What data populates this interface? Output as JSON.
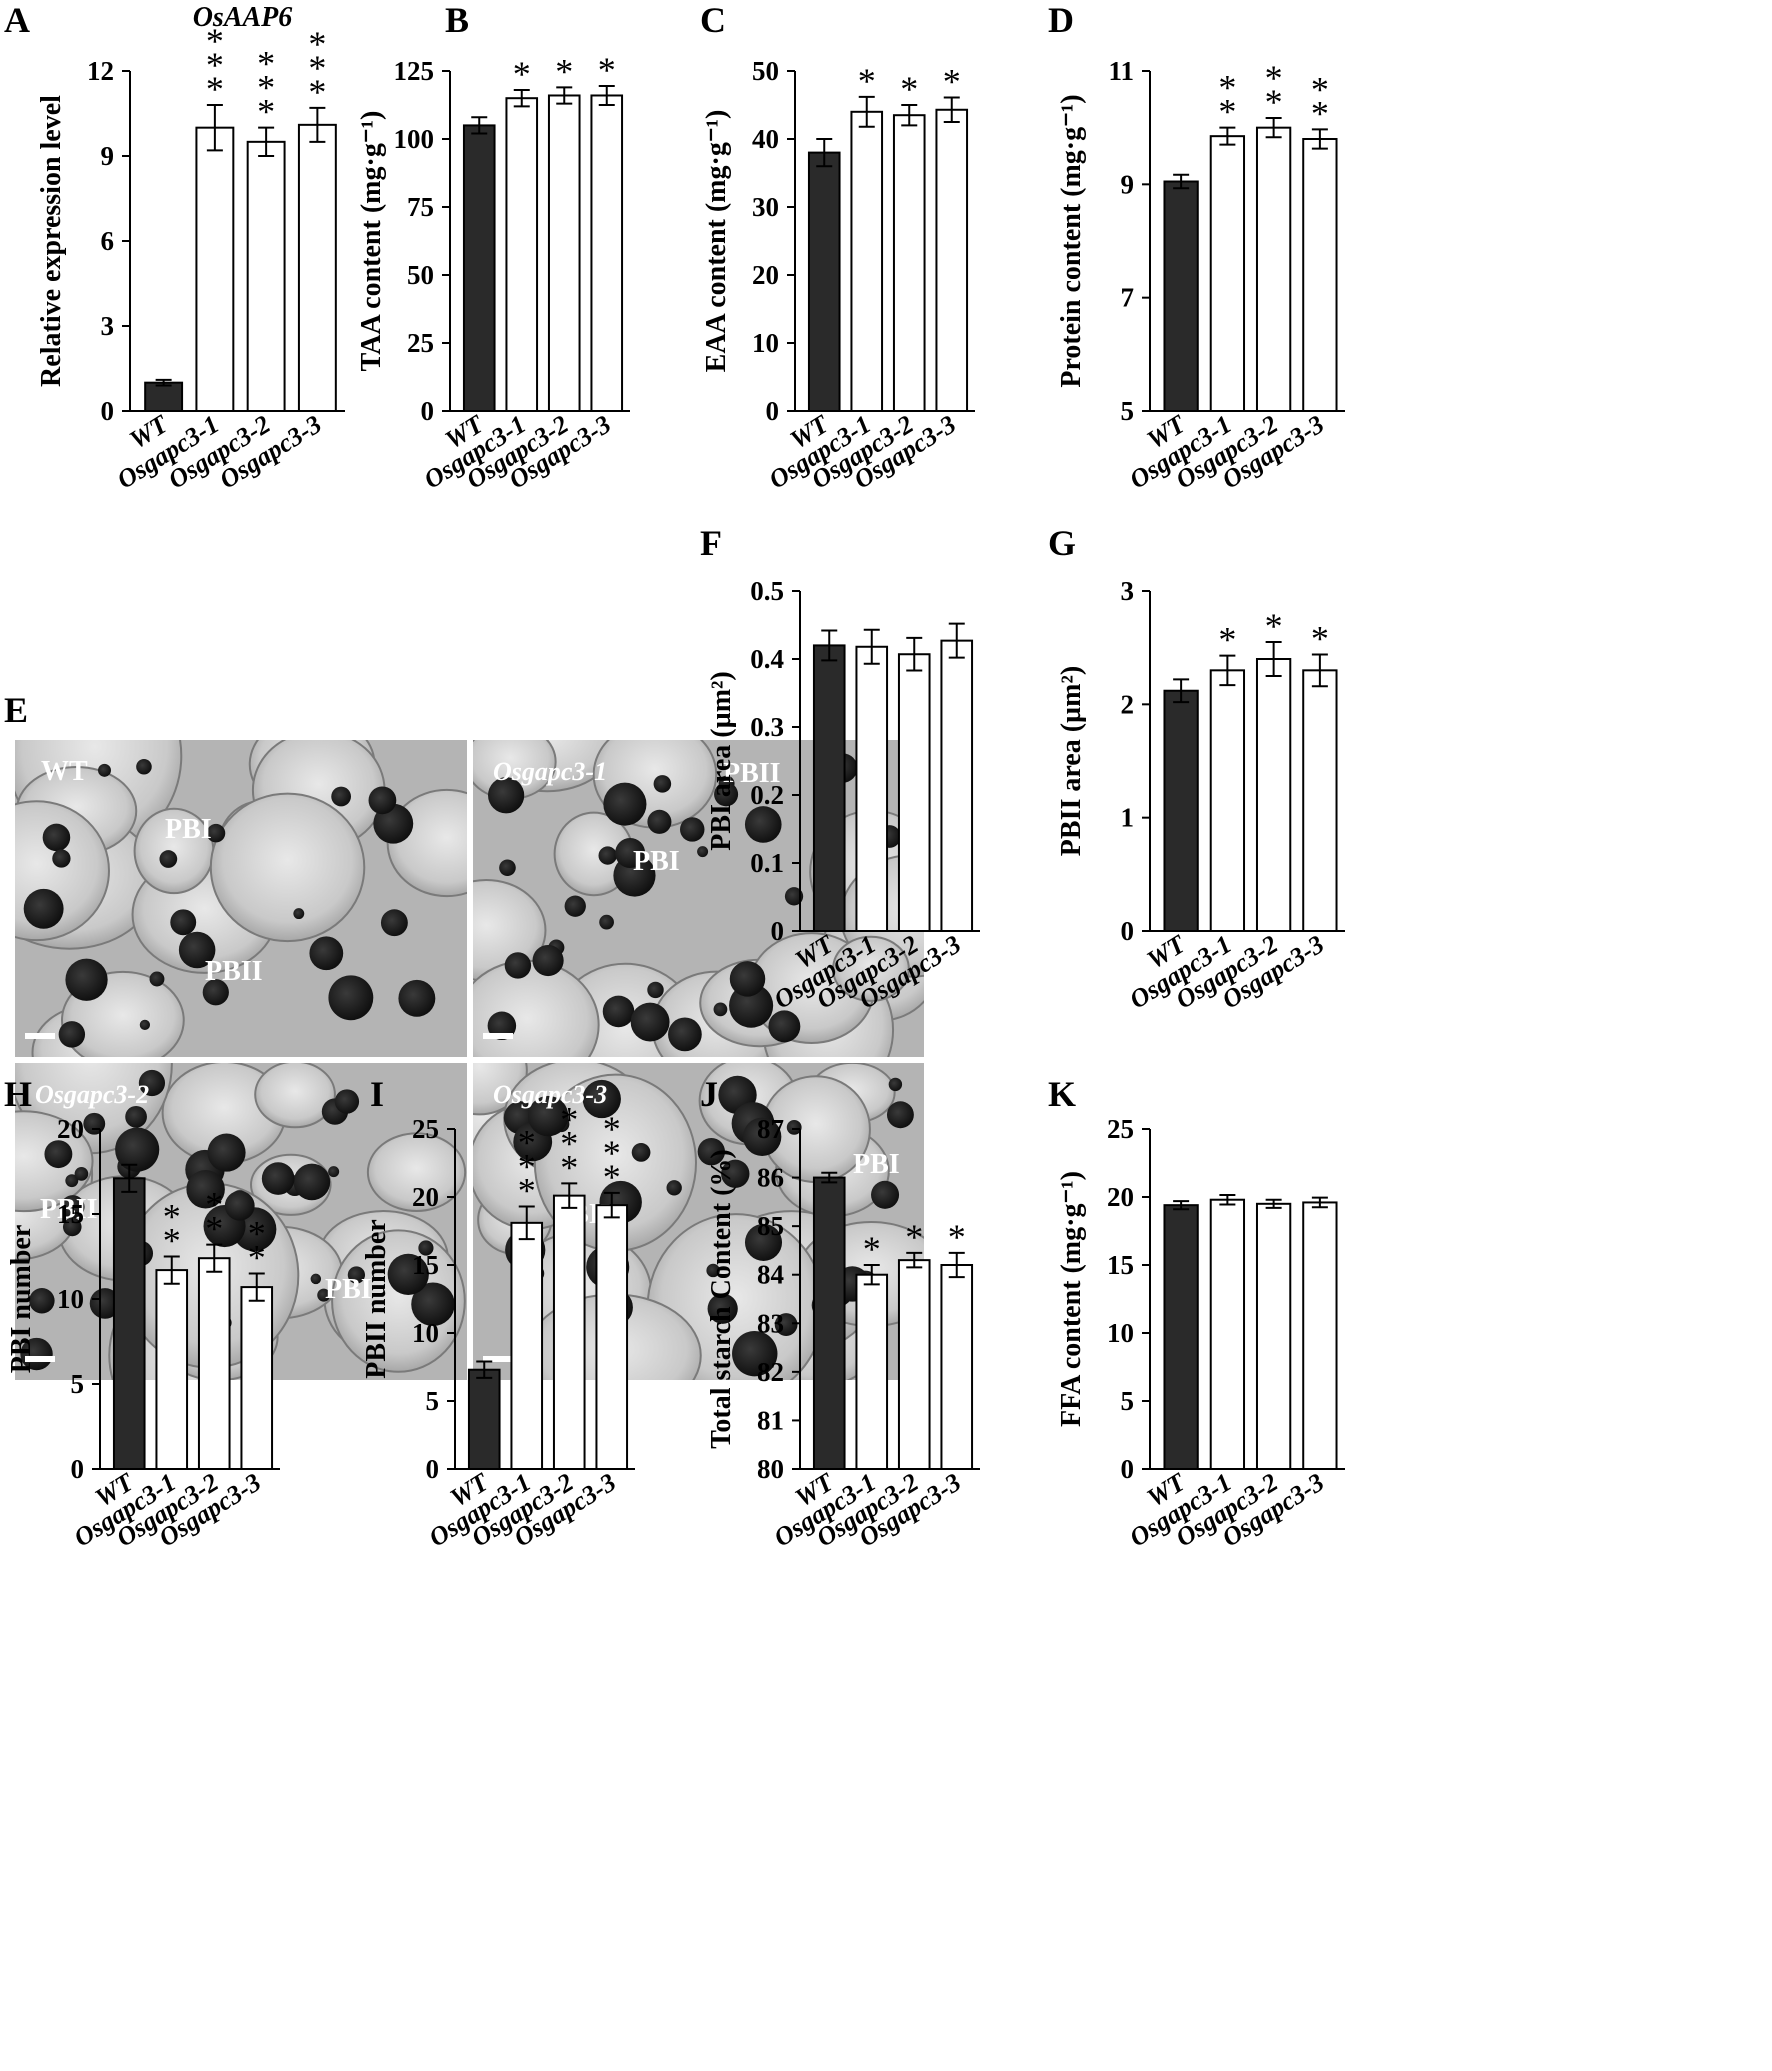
{
  "figure": {
    "panel_E": {
      "letter": "E",
      "quadrants": [
        {
          "labels": [
            "WT",
            "PBI",
            "PBII"
          ]
        },
        {
          "labels": [
            "Osgapc3-1",
            "PBII",
            "PBI"
          ]
        },
        {
          "labels": [
            "Osgapc3-2",
            "PBII",
            "PBI"
          ]
        },
        {
          "labels": [
            "Osgapc3-3",
            "PBI",
            "PBII"
          ]
        }
      ]
    }
  },
  "chart_data": [
    {
      "id": "A",
      "type": "bar",
      "title": "OsAAP6",
      "ylabel": "Relative expression level",
      "categories": [
        "WT",
        "Osgapc3-1",
        "Osgapc3-2",
        "Osgapc3-3"
      ],
      "values": [
        1.0,
        10.0,
        9.5,
        10.1
      ],
      "errors": [
        0.1,
        0.8,
        0.5,
        0.6
      ],
      "significance": [
        "",
        "***",
        "***",
        "***"
      ],
      "ylim": [
        0,
        12
      ],
      "yticks": [
        "0",
        "3",
        "6",
        "9",
        "12"
      ],
      "colors": [
        "#2a2a2a",
        "#ffffff",
        "#ffffff",
        "#ffffff"
      ]
    },
    {
      "id": "B",
      "type": "bar",
      "title": "",
      "ylabel": "TAA content (mg·g⁻¹)",
      "categories": [
        "WT",
        "Osgapc3-1",
        "Osgapc3-2",
        "Osgapc3-3"
      ],
      "values": [
        105,
        115,
        116,
        116
      ],
      "errors": [
        3,
        3,
        3,
        3.5
      ],
      "significance": [
        "",
        "*",
        "*",
        "*"
      ],
      "ylim": [
        0,
        125
      ],
      "yticks": [
        "0",
        "25",
        "50",
        "75",
        "100",
        "125"
      ],
      "colors": [
        "#2a2a2a",
        "#ffffff",
        "#ffffff",
        "#ffffff"
      ]
    },
    {
      "id": "C",
      "type": "bar",
      "title": "",
      "ylabel": "EAA content (mg·g⁻¹)",
      "categories": [
        "WT",
        "Osgapc3-1",
        "Osgapc3-2",
        "Osgapc3-3"
      ],
      "values": [
        38,
        44,
        43.5,
        44.3
      ],
      "errors": [
        2,
        2.2,
        1.5,
        1.8
      ],
      "significance": [
        "",
        "*",
        "*",
        "*"
      ],
      "ylim": [
        0,
        50
      ],
      "yticks": [
        "0",
        "10",
        "20",
        "30",
        "40",
        "50"
      ],
      "colors": [
        "#2a2a2a",
        "#ffffff",
        "#ffffff",
        "#ffffff"
      ]
    },
    {
      "id": "D",
      "type": "bar",
      "title": "",
      "ylabel": "Protein content (mg·g⁻¹)",
      "categories": [
        "WT",
        "Osgapc3-1",
        "Osgapc3-2",
        "Osgapc3-3"
      ],
      "values": [
        9.05,
        9.85,
        10.0,
        9.8
      ],
      "errors": [
        0.12,
        0.15,
        0.17,
        0.17
      ],
      "significance": [
        "",
        "**",
        "**",
        "**"
      ],
      "ylim": [
        5,
        11
      ],
      "yticks": [
        "5",
        "7",
        "9",
        "11"
      ],
      "colors": [
        "#2a2a2a",
        "#ffffff",
        "#ffffff",
        "#ffffff"
      ]
    },
    {
      "id": "F",
      "type": "bar",
      "title": "",
      "ylabel": "PBI area (µm²)",
      "categories": [
        "WT",
        "Osgapc3-1",
        "Osgapc3-2",
        "Osgapc3-3"
      ],
      "values": [
        0.42,
        0.418,
        0.407,
        0.427
      ],
      "errors": [
        0.022,
        0.025,
        0.024,
        0.025
      ],
      "significance": [
        "",
        "",
        "",
        ""
      ],
      "ylim": [
        0,
        0.5
      ],
      "yticks": [
        "0",
        "0.1",
        "0.2",
        "0.3",
        "0.4",
        "0.5"
      ],
      "colors": [
        "#2a2a2a",
        "#ffffff",
        "#ffffff",
        "#ffffff"
      ]
    },
    {
      "id": "G",
      "type": "bar",
      "title": "",
      "ylabel": "PBII area (µm²)",
      "categories": [
        "WT",
        "Osgapc3-1",
        "Osgapc3-2",
        "Osgapc3-3"
      ],
      "values": [
        2.12,
        2.3,
        2.4,
        2.3
      ],
      "errors": [
        0.1,
        0.13,
        0.15,
        0.14
      ],
      "significance": [
        "",
        "*",
        "*",
        "*"
      ],
      "ylim": [
        0,
        3
      ],
      "yticks": [
        "0",
        "1",
        "2",
        "3"
      ],
      "colors": [
        "#2a2a2a",
        "#ffffff",
        "#ffffff",
        "#ffffff"
      ]
    },
    {
      "id": "H",
      "type": "bar",
      "title": "",
      "ylabel": "PBI number",
      "categories": [
        "WT",
        "Osgapc3-1",
        "Osgapc3-2",
        "Osgapc3-3"
      ],
      "values": [
        17.1,
        11.7,
        12.4,
        10.7
      ],
      "errors": [
        0.8,
        0.8,
        0.8,
        0.8
      ],
      "significance": [
        "",
        "**",
        "**",
        "**"
      ],
      "ylim": [
        0,
        20
      ],
      "yticks": [
        "0",
        "5",
        "10",
        "15",
        "20"
      ],
      "colors": [
        "#2a2a2a",
        "#ffffff",
        "#ffffff",
        "#ffffff"
      ]
    },
    {
      "id": "I",
      "type": "bar",
      "title": "",
      "ylabel": "PBII number",
      "categories": [
        "WT",
        "Osgapc3-1",
        "Osgapc3-2",
        "Osgapc3-3"
      ],
      "values": [
        7.3,
        18.1,
        20.1,
        19.4
      ],
      "errors": [
        0.6,
        1.2,
        0.9,
        0.9
      ],
      "significance": [
        "",
        "***",
        "***",
        "***"
      ],
      "ylim": [
        0,
        25
      ],
      "yticks": [
        "0",
        "5",
        "10",
        "15",
        "20",
        "25"
      ],
      "colors": [
        "#2a2a2a",
        "#ffffff",
        "#ffffff",
        "#ffffff"
      ]
    },
    {
      "id": "J",
      "type": "bar",
      "title": "",
      "ylabel": "Total starch Content (%)",
      "categories": [
        "WT",
        "Osgapc3-1",
        "Osgapc3-2",
        "Osgapc3-3"
      ],
      "values": [
        86.0,
        84.0,
        84.3,
        84.2
      ],
      "errors": [
        0.1,
        0.2,
        0.15,
        0.25
      ],
      "significance": [
        "",
        "*",
        "*",
        "*"
      ],
      "ylim": [
        80,
        87
      ],
      "yticks": [
        "80",
        "81",
        "82",
        "83",
        "84",
        "85",
        "86",
        "87"
      ],
      "colors": [
        "#2a2a2a",
        "#ffffff",
        "#ffffff",
        "#ffffff"
      ]
    },
    {
      "id": "K",
      "type": "bar",
      "title": "",
      "ylabel": "FFA content (mg·g⁻¹)",
      "categories": [
        "WT",
        "Osgapc3-1",
        "Osgapc3-2",
        "Osgapc3-3"
      ],
      "values": [
        19.4,
        19.8,
        19.5,
        19.6
      ],
      "errors": [
        0.3,
        0.35,
        0.3,
        0.35
      ],
      "significance": [
        "",
        "",
        "",
        ""
      ],
      "ylim": [
        0,
        25
      ],
      "yticks": [
        "0",
        "5",
        "10",
        "15",
        "20",
        "25"
      ],
      "colors": [
        "#2a2a2a",
        "#ffffff",
        "#ffffff",
        "#ffffff"
      ]
    }
  ]
}
